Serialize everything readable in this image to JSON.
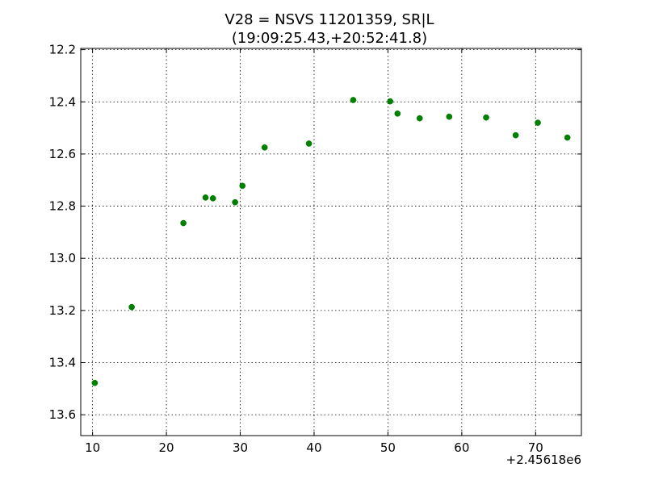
{
  "chart_data": {
    "type": "scatter",
    "title_line1": "V28 = NSVS 11201359, SR|L",
    "title_line2": "(19:09:25.43,+20:52:41.8)",
    "xlabel": "",
    "ylabel": "",
    "x_offset_label": "+2.45618e6",
    "xlim": [
      8.4,
      76.2
    ],
    "ylim": [
      13.68,
      12.195
    ],
    "y_inverted": true,
    "x_ticks": [
      10,
      20,
      30,
      40,
      50,
      60,
      70
    ],
    "x_tick_labels": [
      "10",
      "20",
      "30",
      "40",
      "50",
      "60",
      "70"
    ],
    "y_ticks": [
      12.2,
      12.4,
      12.6,
      12.8,
      13.0,
      13.2,
      13.4,
      13.6
    ],
    "y_tick_labels": [
      "12.2",
      "12.4",
      "12.6",
      "12.8",
      "13.0",
      "13.2",
      "13.4",
      "13.6"
    ],
    "grid": true,
    "marker_color": "#007f00",
    "points": [
      {
        "x": 10.3,
        "y": 13.478
      },
      {
        "x": 15.3,
        "y": 13.187
      },
      {
        "x": 22.3,
        "y": 12.865
      },
      {
        "x": 25.3,
        "y": 12.767
      },
      {
        "x": 26.3,
        "y": 12.77
      },
      {
        "x": 29.3,
        "y": 12.785
      },
      {
        "x": 30.3,
        "y": 12.722
      },
      {
        "x": 33.3,
        "y": 12.575
      },
      {
        "x": 39.3,
        "y": 12.56
      },
      {
        "x": 45.3,
        "y": 12.393
      },
      {
        "x": 50.3,
        "y": 12.398
      },
      {
        "x": 51.3,
        "y": 12.445
      },
      {
        "x": 54.3,
        "y": 12.463
      },
      {
        "x": 58.3,
        "y": 12.457
      },
      {
        "x": 63.3,
        "y": 12.46
      },
      {
        "x": 67.3,
        "y": 12.528
      },
      {
        "x": 70.3,
        "y": 12.48
      },
      {
        "x": 74.3,
        "y": 12.537
      }
    ]
  }
}
